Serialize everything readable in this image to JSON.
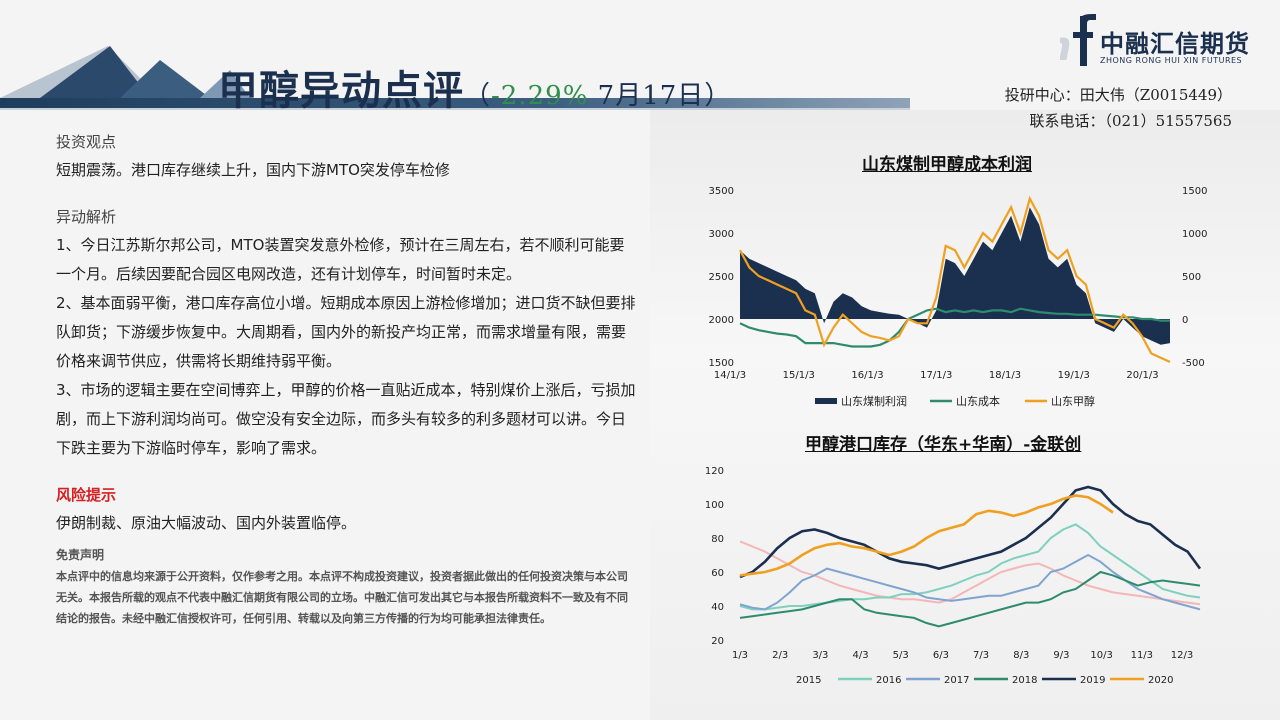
{
  "header": {
    "title_main": "甲醇异动点评",
    "title_open": "（",
    "title_pct": "-2.29%",
    "title_date": " 7月17日",
    "title_close": "）",
    "logo_cn": "中融汇信期货",
    "logo_en": "ZHONG RONG HUI XIN FUTURES",
    "contact_line1": "投研中心：田大伟（Z0015449）",
    "contact_line2": "联系电话：（021）51557565"
  },
  "colors": {
    "navy": "#1b2f4f",
    "orange": "#f0a020",
    "teal": "#2e8b6e",
    "risk_red": "#d42020"
  },
  "content": {
    "view_heading": "投资观点",
    "view_text": "短期震荡。港口库存继续上升，国内下游MTO突发停车检修",
    "analysis_heading": "异动解析",
    "analysis_1": "1、今日江苏斯尔邦公司，MTO装置突发意外检修，预计在三周左右，若不顺利可能要一个月。后续因要配合园区电网改造，还有计划停车，时间暂时未定。",
    "analysis_2": "2、基本面弱平衡，港口库存高位小增。短期成本原因上游检修增加；进口货不缺但要排队卸货；下游缓步恢复中。大周期看，国内外的新投产均正常，而需求增量有限，需要价格来调节供应，供需将长期维持弱平衡。",
    "analysis_3": "3、市场的逻辑主要在空间博弈上，甲醇的价格一直贴近成本，特别煤价上涨后，亏损加剧，而上下游利润均尚可。做空没有安全边际，而多头有较多的利多题材可以讲。今日下跌主要为下游临时停车，影响了需求。",
    "risk_heading": "风险提示",
    "risk_text": "伊朗制裁、原油大幅波动、国内外装置临停。",
    "disclaimer_heading": "免责声明",
    "disclaimer_text": "本点评中的信息均来源于公开资料，仅作参考之用。本点评不构成投资建议，投资者据此做出的任何投资决策与本公司无关。本报告所载的观点不代表中融汇信期货有限公司的立场。中融汇信可发出其它与本报告所载资料不一致及有不同结论的报告。未经中融汇信授权许可，任何引用、转载以及向第三方传播的行为均可能承担法律责任。"
  },
  "chart_data": [
    {
      "type": "line",
      "title": "山东煤制甲醇成本利润",
      "x_ticks": [
        "14/1/3",
        "15/1/3",
        "16/1/3",
        "17/1/3",
        "18/1/3",
        "19/1/3",
        "20/1/3"
      ],
      "y_left_ticks": [
        1500,
        2000,
        2500,
        3000,
        3500
      ],
      "y_left_range": [
        1500,
        3500
      ],
      "y_right_ticks": [
        -500,
        0,
        500,
        1000,
        1500
      ],
      "y_right_range": [
        -500,
        1500
      ],
      "series": [
        {
          "name": "山东煤制利润",
          "kind": "area",
          "axis": "right",
          "values": [
            800,
            700,
            650,
            600,
            550,
            500,
            450,
            350,
            300,
            -50,
            200,
            300,
            250,
            150,
            100,
            80,
            60,
            50,
            0,
            -50,
            -100,
            100,
            700,
            650,
            500,
            700,
            900,
            800,
            1000,
            1200,
            900,
            1300,
            1100,
            700,
            600,
            700,
            400,
            300,
            -50,
            -100,
            -150,
            0,
            -100,
            -200,
            -250,
            -300,
            -280
          ]
        },
        {
          "name": "山东成本",
          "kind": "line",
          "axis": "left",
          "values": [
            1950,
            1900,
            1870,
            1850,
            1830,
            1820,
            1800,
            1720,
            1720,
            1720,
            1720,
            1700,
            1680,
            1680,
            1680,
            1700,
            1750,
            1850,
            2000,
            2050,
            2100,
            2120,
            2080,
            2100,
            2080,
            2100,
            2080,
            2100,
            2100,
            2080,
            2120,
            2100,
            2080,
            2070,
            2060,
            2060,
            2050,
            2050,
            2050,
            2040,
            2030,
            2020,
            2020,
            2000,
            2000,
            1980,
            1980
          ]
        },
        {
          "name": "山东甲醇",
          "kind": "line",
          "axis": "left",
          "values": [
            2800,
            2600,
            2500,
            2450,
            2400,
            2350,
            2300,
            2100,
            2050,
            1700,
            1900,
            2050,
            1950,
            1850,
            1800,
            1780,
            1750,
            1800,
            2000,
            1950,
            1950,
            2250,
            2850,
            2800,
            2600,
            2800,
            3000,
            2900,
            3100,
            3300,
            3000,
            3400,
            3200,
            2800,
            2700,
            2800,
            2500,
            2400,
            2000,
            1950,
            1900,
            2050,
            1950,
            1800,
            1600,
            1550,
            1500
          ]
        }
      ]
    },
    {
      "type": "line",
      "title": "甲醇港口库存（华东+华南）-金联创",
      "x_ticks": [
        "1/3",
        "2/3",
        "3/3",
        "4/3",
        "5/3",
        "6/3",
        "7/3",
        "8/3",
        "9/3",
        "10/3",
        "11/3",
        "12/3"
      ],
      "y_ticks": [
        20,
        40,
        60,
        80,
        100,
        120
      ],
      "ylim": [
        20,
        120
      ],
      "series": [
        {
          "name": "2015",
          "color": "#f4b6b6",
          "values": [
            78,
            75,
            72,
            68,
            64,
            60,
            58,
            55,
            52,
            50,
            48,
            46,
            45,
            44,
            44,
            43,
            42,
            44,
            48,
            52,
            56,
            60,
            62,
            64,
            65,
            62,
            58,
            55,
            52,
            50,
            48,
            47,
            46,
            45,
            44,
            43,
            42,
            41
          ]
        },
        {
          "name": "2016",
          "color": "#7fd1bd",
          "values": [
            40,
            38,
            38,
            39,
            40,
            40,
            41,
            42,
            43,
            44,
            44,
            45,
            45,
            47,
            47,
            48,
            50,
            52,
            55,
            58,
            60,
            65,
            68,
            70,
            72,
            80,
            85,
            88,
            83,
            75,
            70,
            65,
            60,
            55,
            50,
            48,
            46,
            45
          ]
        },
        {
          "name": "2017",
          "color": "#7fa4cf",
          "values": [
            41,
            39,
            38,
            42,
            48,
            55,
            58,
            62,
            60,
            58,
            56,
            54,
            52,
            50,
            48,
            45,
            44,
            43,
            44,
            45,
            46,
            46,
            48,
            50,
            52,
            60,
            62,
            66,
            70,
            66,
            60,
            55,
            50,
            47,
            44,
            42,
            40,
            38
          ]
        },
        {
          "name": "2018",
          "color": "#2e8b6e",
          "values": [
            33,
            34,
            35,
            36,
            37,
            38,
            40,
            42,
            44,
            44,
            38,
            36,
            35,
            34,
            33,
            30,
            28,
            30,
            32,
            34,
            36,
            38,
            40,
            42,
            42,
            44,
            48,
            50,
            55,
            60,
            58,
            55,
            52,
            54,
            55,
            54,
            53,
            52
          ]
        },
        {
          "name": "2019",
          "color": "#1b2f4f",
          "values": [
            57,
            60,
            66,
            74,
            80,
            84,
            85,
            83,
            80,
            78,
            76,
            72,
            68,
            66,
            65,
            64,
            62,
            64,
            66,
            68,
            70,
            72,
            76,
            80,
            86,
            92,
            100,
            108,
            110,
            108,
            100,
            94,
            90,
            88,
            82,
            76,
            72,
            62
          ]
        },
        {
          "name": "2020",
          "color": "#f0a020",
          "values": [
            58,
            59,
            60,
            62,
            65,
            70,
            74,
            76,
            77,
            75,
            74,
            72,
            70,
            72,
            75,
            80,
            84,
            86,
            88,
            94,
            96,
            95,
            93,
            95,
            98,
            100,
            103,
            105,
            104,
            100,
            95
          ]
        }
      ]
    }
  ]
}
